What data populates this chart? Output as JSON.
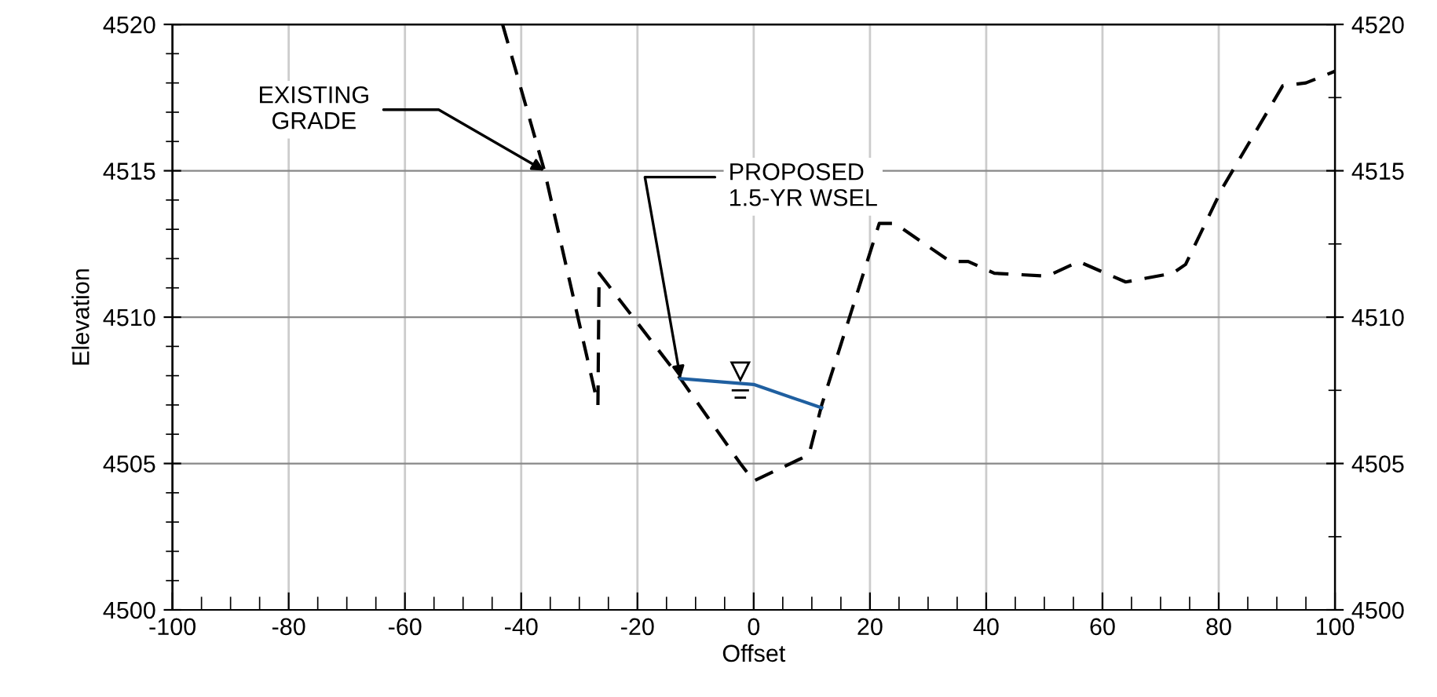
{
  "chart_data": {
    "type": "line",
    "xlabel": "Offset",
    "ylabel": "Elevation",
    "series": [
      {
        "color": "#000000",
        "line_style": "dashed",
        "x": [
          -43.2,
          -36,
          -26.8,
          -26.6,
          -12.6,
          -2.3,
          0,
          9.5,
          11.7,
          21.6,
          24.3,
          33.8,
          36.9,
          41.4,
          50.5,
          55.9,
          64,
          72.1,
          74.3,
          80.6,
          91,
          95,
          100
        ],
        "values": [
          4520,
          4515,
          4507,
          4511.5,
          4507.9,
          4505,
          4504.4,
          4505.3,
          4507,
          4513.2,
          4513.2,
          4511.9,
          4511.9,
          4511.5,
          4511.4,
          4511.9,
          4511.2,
          4511.5,
          4511.8,
          4514.4,
          4517.9,
          4518,
          4518.4
        ]
      },
      {
        "color": "#1f5fa0",
        "line_style": "solid",
        "x": [
          -12.6,
          0,
          11.7
        ],
        "values": [
          4507.9,
          4507.7,
          4506.9
        ]
      }
    ],
    "annotations": [
      {
        "text": "EXISTING\nGRADE",
        "x": -36,
        "y": 4515
      },
      {
        "text": "PROPOSED\n1.5-YR WSEL",
        "x": -12.6,
        "y": 4507.9
      }
    ],
    "xlim": [
      -100,
      100
    ],
    "ylim": [
      4500,
      4520
    ],
    "y2lim": [
      4500,
      4520
    ],
    "xticks": [
      -100,
      {
        "value": -95,
        "label": null
      },
      {
        "value": -90,
        "label": null
      },
      {
        "value": -85,
        "label": null
      },
      -80,
      {
        "value": -75,
        "label": null
      },
      {
        "value": -70,
        "label": null
      },
      {
        "value": -65,
        "label": null
      },
      -60,
      {
        "value": -55,
        "label": null
      },
      {
        "value": -50,
        "label": null
      },
      {
        "value": -45,
        "label": null
      },
      -40,
      {
        "value": -35,
        "label": null
      },
      {
        "value": -30,
        "label": null
      },
      {
        "value": -25,
        "label": null
      },
      -20,
      {
        "value": -15,
        "label": null
      },
      {
        "value": -10,
        "label": null
      },
      {
        "value": -5,
        "label": null
      },
      0,
      {
        "value": 5,
        "label": null
      },
      {
        "value": 10,
        "label": null
      },
      {
        "value": 15,
        "label": null
      },
      20,
      {
        "value": 25,
        "label": null
      },
      {
        "value": 30,
        "label": null
      },
      {
        "value": 35,
        "label": null
      },
      40,
      {
        "value": 45,
        "label": null
      },
      {
        "value": 50,
        "label": null
      },
      {
        "value": 55,
        "label": null
      },
      60,
      {
        "value": 65,
        "label": null
      },
      {
        "value": 70,
        "label": null
      },
      {
        "value": 75,
        "label": null
      },
      80,
      {
        "value": 85,
        "label": null
      },
      {
        "value": 90,
        "label": null
      },
      {
        "value": 95,
        "label": null
      },
      100
    ],
    "yticks": [
      4500,
      {
        "value": 4501,
        "label": null
      },
      {
        "value": 4502,
        "label": null
      },
      {
        "value": 4503,
        "label": null
      },
      {
        "value": 4504,
        "label": null
      },
      4505,
      {
        "value": 4506,
        "label": null
      },
      {
        "value": 4507,
        "label": null
      },
      {
        "value": 4508,
        "label": null
      },
      {
        "value": 4509,
        "label": null
      },
      4510,
      {
        "value": 4511,
        "label": null
      },
      {
        "value": 4512,
        "label": null
      },
      {
        "value": 4513,
        "label": null
      },
      {
        "value": 4514,
        "label": null
      },
      4515,
      {
        "value": 4516,
        "label": null
      },
      {
        "value": 4517,
        "label": null
      },
      {
        "value": 4518,
        "label": null
      },
      {
        "value": 4519,
        "label": null
      },
      4520
    ],
    "y2ticks": [
      4500,
      {
        "value": 4502.5,
        "label": null
      },
      4505,
      {
        "value": 4507.5,
        "label": null
      },
      4510,
      {
        "value": 4512.5,
        "label": null
      },
      4515,
      {
        "value": 4517.5,
        "label": null
      },
      4520
    ],
    "grid": true,
    "marker": "none"
  }
}
